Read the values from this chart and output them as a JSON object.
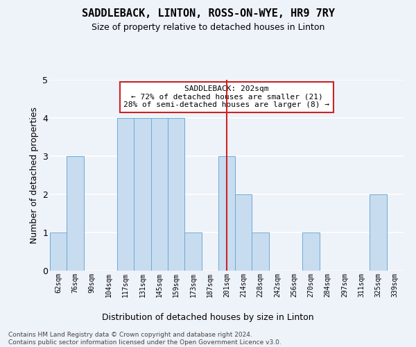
{
  "title": "SADDLEBACK, LINTON, ROSS-ON-WYE, HR9 7RY",
  "subtitle": "Size of property relative to detached houses in Linton",
  "xlabel": "Distribution of detached houses by size in Linton",
  "ylabel": "Number of detached properties",
  "bar_color": "#c8dcf0",
  "bar_edge_color": "#6aaad4",
  "background_color": "#eef2f9",
  "grid_color": "#ffffff",
  "categories": [
    "62sqm",
    "76sqm",
    "90sqm",
    "104sqm",
    "117sqm",
    "131sqm",
    "145sqm",
    "159sqm",
    "173sqm",
    "187sqm",
    "201sqm",
    "214sqm",
    "228sqm",
    "242sqm",
    "256sqm",
    "270sqm",
    "284sqm",
    "297sqm",
    "311sqm",
    "325sqm",
    "339sqm"
  ],
  "values": [
    1,
    3,
    0,
    0,
    4,
    4,
    4,
    4,
    1,
    0,
    3,
    2,
    1,
    0,
    0,
    1,
    0,
    0,
    0,
    2,
    0
  ],
  "vline_index": 10,
  "vline_color": "#cc2222",
  "annotation_text": "SADDLEBACK: 202sqm\n← 72% of detached houses are smaller (21)\n28% of semi-detached houses are larger (8) →",
  "annotation_box_color": "#ffffff",
  "annotation_box_edge": "#cc2222",
  "footer": "Contains HM Land Registry data © Crown copyright and database right 2024.\nContains public sector information licensed under the Open Government Licence v3.0.",
  "ylim": [
    0,
    5
  ],
  "yticks": [
    0,
    1,
    2,
    3,
    4,
    5
  ]
}
